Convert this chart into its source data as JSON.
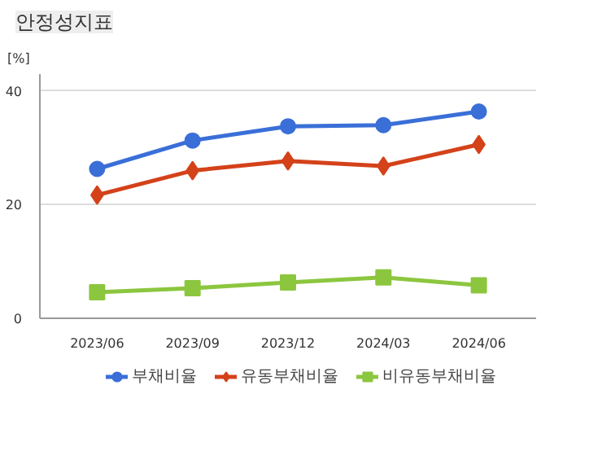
{
  "chart_data": {
    "type": "line",
    "title": "안정성지표",
    "ylabel": "[%]",
    "categories": [
      "2023/06",
      "2023/09",
      "2023/12",
      "2024/03",
      "2024/06"
    ],
    "ylim": [
      0,
      43
    ],
    "yticks": [
      0,
      20,
      40
    ],
    "grid": "y",
    "legend": "bottom",
    "line_style": "solid",
    "series": [
      {
        "name": "부채비율",
        "color": "#3a6fd8",
        "marker": "circle",
        "values": [
          26.3,
          31.3,
          33.8,
          34.0,
          36.4
        ]
      },
      {
        "name": "유동부채비율",
        "color": "#d4421a",
        "marker": "diamond",
        "values": [
          21.7,
          26.0,
          27.7,
          26.8,
          30.6
        ]
      },
      {
        "name": "비유동부채비율",
        "color": "#8cc63f",
        "marker": "square",
        "values": [
          4.6,
          5.3,
          6.3,
          7.2,
          5.8
        ]
      }
    ]
  }
}
